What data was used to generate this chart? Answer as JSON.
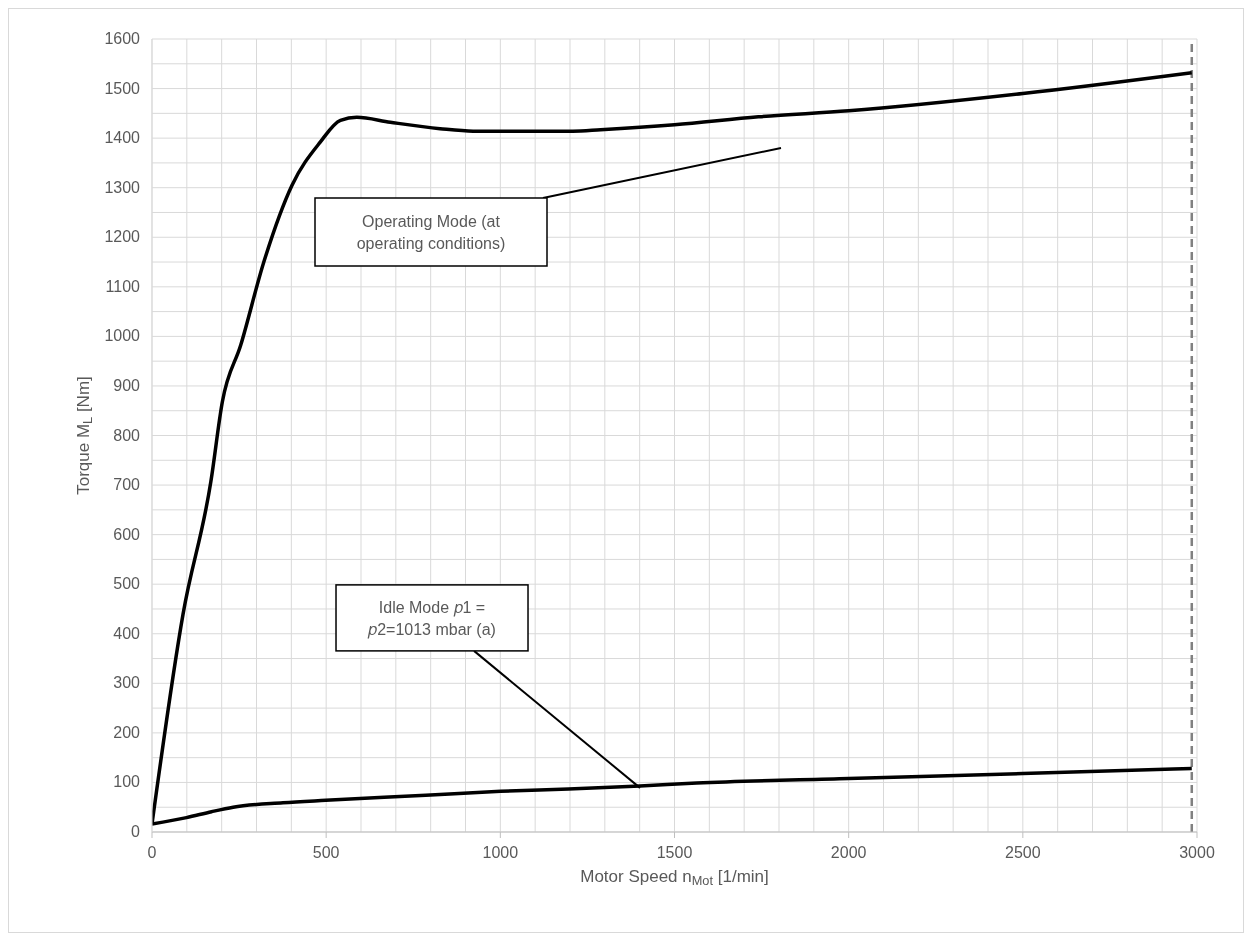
{
  "chart_data": {
    "type": "line",
    "xlabel": "Motor Speed n$_{Mot}$ [1/min]",
    "ylabel": "Torque M$_{L}$ [Nm]",
    "xlim": [
      0,
      3000
    ],
    "ylim": [
      0,
      1600
    ],
    "xticks": [
      0,
      {
        "value": 100,
        "label": null
      },
      {
        "value": 200,
        "label": null
      },
      {
        "value": 300,
        "label": null
      },
      {
        "value": 400,
        "label": null
      },
      500,
      {
        "value": 600,
        "label": null
      },
      {
        "value": 700,
        "label": null
      },
      {
        "value": 800,
        "label": null
      },
      {
        "value": 900,
        "label": null
      },
      1000,
      {
        "value": 1100,
        "label": null
      },
      {
        "value": 1200,
        "label": null
      },
      {
        "value": 1300,
        "label": null
      },
      {
        "value": 1400,
        "label": null
      },
      1500,
      {
        "value": 1600,
        "label": null
      },
      {
        "value": 1700,
        "label": null
      },
      {
        "value": 1800,
        "label": null
      },
      {
        "value": 1900,
        "label": null
      },
      2000,
      {
        "value": 2100,
        "label": null
      },
      {
        "value": 2200,
        "label": null
      },
      {
        "value": 2300,
        "label": null
      },
      {
        "value": 2400,
        "label": null
      },
      2500,
      {
        "value": 2600,
        "label": null
      },
      {
        "value": 2700,
        "label": null
      },
      {
        "value": 2800,
        "label": null
      },
      {
        "value": 2900,
        "label": null
      },
      3000
    ],
    "yticks": [
      0,
      {
        "value": 50,
        "label": null
      },
      100,
      {
        "value": 150,
        "label": null
      },
      200,
      {
        "value": 250,
        "label": null
      },
      300,
      {
        "value": 350,
        "label": null
      },
      400,
      {
        "value": 450,
        "label": null
      },
      500,
      {
        "value": 550,
        "label": null
      },
      600,
      {
        "value": 650,
        "label": null
      },
      700,
      {
        "value": 750,
        "label": null
      },
      800,
      {
        "value": 850,
        "label": null
      },
      900,
      {
        "value": 950,
        "label": null
      },
      1000,
      {
        "value": 1050,
        "label": null
      },
      1100,
      {
        "value": 1150,
        "label": null
      },
      1200,
      {
        "value": 1250,
        "label": null
      },
      1300,
      {
        "value": 1350,
        "label": null
      },
      1400,
      {
        "value": 1450,
        "label": null
      },
      1500,
      {
        "value": 1550,
        "label": null
      },
      1600
    ],
    "grid": true,
    "legend": false,
    "marker": "none",
    "line_style": "solid",
    "series": [
      {
        "color": "#000000",
        "x": [
          0,
          89,
          169,
          202,
          255,
          321,
          402,
          483,
          541,
          588,
          684,
          827,
          922,
          1208,
          1288,
          1500,
          1741,
          2000,
          2500,
          2985
        ],
        "values": [
          16,
          439,
          707,
          868,
          983,
          1150,
          1305,
          1392,
          1436,
          1442,
          1432,
          1419,
          1414,
          1414,
          1417,
          1427,
          1443,
          1455,
          1490,
          1532
        ]
      },
      {
        "color": "#000000",
        "x": [
          0,
          99,
          171,
          233,
          376,
          499,
          786,
          1001,
          1196,
          1401,
          1564,
          2000,
          2500,
          2985
        ],
        "values": [
          16,
          29,
          41,
          50,
          59,
          64,
          74,
          82,
          87,
          93,
          99,
          108,
          118,
          128
        ]
      }
    ],
    "ref_lines": [
      {
        "axis": "x",
        "value": 2985,
        "color": "#808080",
        "line_style": "dashed"
      }
    ],
    "annotations": [
      "Operating Mode (at operating conditions)",
      {
        "text": "Idle Mode 𝑝1 = 𝑝2=1013 mbar (a)",
        "x": 1401,
        "y": 89
      }
    ]
  }
}
